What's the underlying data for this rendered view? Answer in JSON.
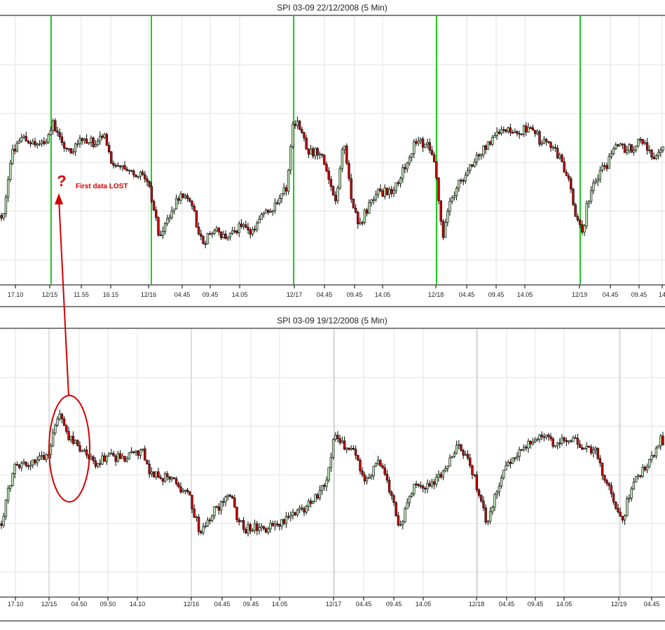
{
  "colors": {
    "up_candle": "#b9e3b0",
    "down_candle": "#c80000",
    "wick": "#000000",
    "grid": "#e2e2e2",
    "day_marker_top": "#22cc22",
    "day_marker_bottom": "#bfbfbf",
    "annotation": "#d40000"
  },
  "annotation": {
    "question_mark": "?",
    "text": "First data LOST"
  },
  "chart_data": [
    {
      "type": "candlestick",
      "title": "SPI 03-09  22/12/2008 (5 Min)",
      "tick_labels": [
        "17.10",
        "12/15",
        "11.55",
        "16.15",
        "12/16",
        "04.45",
        "09.45",
        "14.05",
        "12/17",
        "04.45",
        "09.45",
        "14.05",
        "12/18",
        "04.45",
        "09.45",
        "14.05",
        "12/19",
        "04.45",
        "09.45",
        "14"
      ],
      "day_separators": [
        "12/15",
        "12/16",
        "12/17",
        "12/18",
        "12/19"
      ],
      "grid": true,
      "price_path": [
        [
          0,
          0.8
        ],
        [
          12,
          0.62
        ],
        [
          18,
          0.5
        ],
        [
          26,
          0.47
        ],
        [
          45,
          0.46
        ],
        [
          62,
          0.48
        ],
        [
          75,
          0.4
        ],
        [
          88,
          0.47
        ],
        [
          103,
          0.5
        ],
        [
          118,
          0.46
        ],
        [
          133,
          0.47
        ],
        [
          150,
          0.44
        ],
        [
          160,
          0.55
        ],
        [
          178,
          0.58
        ],
        [
          205,
          0.6
        ],
        [
          215,
          0.66
        ],
        [
          228,
          0.83
        ],
        [
          245,
          0.72
        ],
        [
          262,
          0.66
        ],
        [
          275,
          0.7
        ],
        [
          282,
          0.82
        ],
        [
          292,
          0.84
        ],
        [
          304,
          0.8
        ],
        [
          320,
          0.82
        ],
        [
          340,
          0.79
        ],
        [
          360,
          0.8
        ],
        [
          375,
          0.73
        ],
        [
          395,
          0.71
        ],
        [
          410,
          0.63
        ],
        [
          418,
          0.42
        ],
        [
          425,
          0.4
        ],
        [
          440,
          0.5
        ],
        [
          460,
          0.52
        ],
        [
          478,
          0.7
        ],
        [
          490,
          0.47
        ],
        [
          500,
          0.66
        ],
        [
          512,
          0.79
        ],
        [
          525,
          0.71
        ],
        [
          540,
          0.66
        ],
        [
          560,
          0.65
        ],
        [
          575,
          0.58
        ],
        [
          590,
          0.48
        ],
        [
          612,
          0.47
        ],
        [
          622,
          0.58
        ],
        [
          632,
          0.82
        ],
        [
          640,
          0.72
        ],
        [
          655,
          0.62
        ],
        [
          670,
          0.57
        ],
        [
          695,
          0.48
        ],
        [
          718,
          0.41
        ],
        [
          735,
          0.43
        ],
        [
          760,
          0.42
        ],
        [
          772,
          0.47
        ],
        [
          790,
          0.49
        ],
        [
          800,
          0.53
        ],
        [
          812,
          0.62
        ],
        [
          822,
          0.74
        ],
        [
          832,
          0.81
        ],
        [
          838,
          0.7
        ],
        [
          850,
          0.6
        ],
        [
          865,
          0.56
        ],
        [
          880,
          0.48
        ],
        [
          895,
          0.5
        ],
        [
          915,
          0.47
        ],
        [
          930,
          0.52
        ],
        [
          949,
          0.5
        ]
      ]
    },
    {
      "type": "candlestick",
      "title": "SPI 03-09  19/12/2008 (5 Min)",
      "tick_labels": [
        "17.10",
        "12/15",
        "04.50",
        "09.50",
        "14.10",
        "12/16",
        "04.45",
        "09.45",
        "14.05",
        "12/17",
        "04.45",
        "09.45",
        "14.05",
        "12/18",
        "04.45",
        "09.45",
        "14.05",
        "12/19",
        "04.45"
      ],
      "day_separators": [
        "12/15",
        "12/16",
        "12/17",
        "12/18",
        "12/19"
      ],
      "grid": true,
      "price_path": [
        [
          0,
          0.76
        ],
        [
          12,
          0.6
        ],
        [
          22,
          0.51
        ],
        [
          45,
          0.5
        ],
        [
          60,
          0.48
        ],
        [
          70,
          0.46
        ],
        [
          85,
          0.31
        ],
        [
          100,
          0.41
        ],
        [
          118,
          0.46
        ],
        [
          135,
          0.5
        ],
        [
          155,
          0.48
        ],
        [
          180,
          0.48
        ],
        [
          205,
          0.46
        ],
        [
          215,
          0.54
        ],
        [
          240,
          0.56
        ],
        [
          262,
          0.6
        ],
        [
          272,
          0.64
        ],
        [
          285,
          0.76
        ],
        [
          305,
          0.68
        ],
        [
          322,
          0.64
        ],
        [
          330,
          0.61
        ],
        [
          340,
          0.72
        ],
        [
          350,
          0.75
        ],
        [
          365,
          0.74
        ],
        [
          380,
          0.75
        ],
        [
          400,
          0.72
        ],
        [
          420,
          0.7
        ],
        [
          440,
          0.66
        ],
        [
          465,
          0.58
        ],
        [
          478,
          0.38
        ],
        [
          490,
          0.44
        ],
        [
          505,
          0.46
        ],
        [
          525,
          0.58
        ],
        [
          540,
          0.48
        ],
        [
          555,
          0.6
        ],
        [
          570,
          0.74
        ],
        [
          590,
          0.59
        ],
        [
          605,
          0.59
        ],
        [
          620,
          0.57
        ],
        [
          635,
          0.52
        ],
        [
          650,
          0.44
        ],
        [
          665,
          0.46
        ],
        [
          682,
          0.6
        ],
        [
          695,
          0.74
        ],
        [
          705,
          0.64
        ],
        [
          720,
          0.53
        ],
        [
          745,
          0.45
        ],
        [
          775,
          0.39
        ],
        [
          795,
          0.44
        ],
        [
          810,
          0.4
        ],
        [
          835,
          0.44
        ],
        [
          850,
          0.46
        ],
        [
          862,
          0.56
        ],
        [
          875,
          0.63
        ],
        [
          888,
          0.72
        ],
        [
          902,
          0.58
        ],
        [
          920,
          0.52
        ],
        [
          935,
          0.46
        ],
        [
          944,
          0.39
        ],
        [
          949,
          0.46
        ]
      ]
    }
  ]
}
